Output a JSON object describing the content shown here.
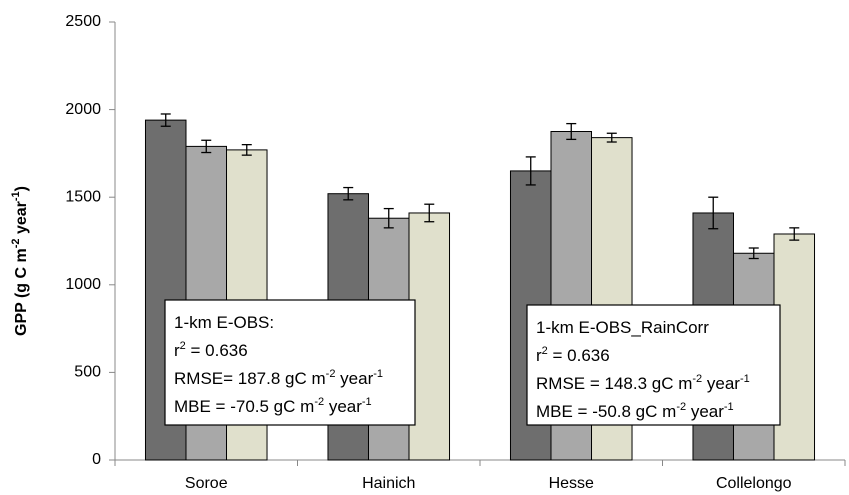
{
  "chart_data": {
    "type": "bar",
    "y_label": [
      "GPP (g C m",
      "-2",
      " year",
      "-1",
      ")"
    ],
    "categories": [
      "Soroe",
      "Hainich",
      "Hesse",
      "Collelongo"
    ],
    "series": [
      {
        "color": "#6e6e6e",
        "values": [
          1940,
          1520,
          1650,
          1410
        ],
        "errors": [
          35,
          35,
          80,
          90
        ]
      },
      {
        "color": "#a8a8a8",
        "values": [
          1790,
          1380,
          1875,
          1180
        ],
        "errors": [
          35,
          55,
          45,
          30
        ]
      },
      {
        "color": "#e0e0cc",
        "values": [
          1770,
          1410,
          1840,
          1290
        ],
        "errors": [
          30,
          50,
          25,
          35
        ]
      }
    ],
    "ylim": [
      0,
      2500
    ],
    "yticks": [
      0,
      500,
      1000,
      1500,
      2000,
      2500
    ],
    "annotations": [
      {
        "lines": [
          [
            "1-km E-OBS:"
          ],
          [
            "r",
            "2",
            " = 0.636"
          ],
          [
            "RMSE= 187.8 gC m",
            "-2",
            " year",
            "-1"
          ],
          [
            "MBE = -70.5 gC m",
            "-2",
            " year",
            "-1"
          ]
        ]
      },
      {
        "lines": [
          [
            "1-km E-OBS_RainCorr"
          ],
          [
            "r",
            "2",
            " = 0.636"
          ],
          [
            "RMSE = 148.3 gC m",
            "-2",
            " year",
            "-1"
          ],
          [
            "MBE = -50.8 gC m",
            "-2",
            " year",
            "-1"
          ]
        ]
      }
    ]
  }
}
